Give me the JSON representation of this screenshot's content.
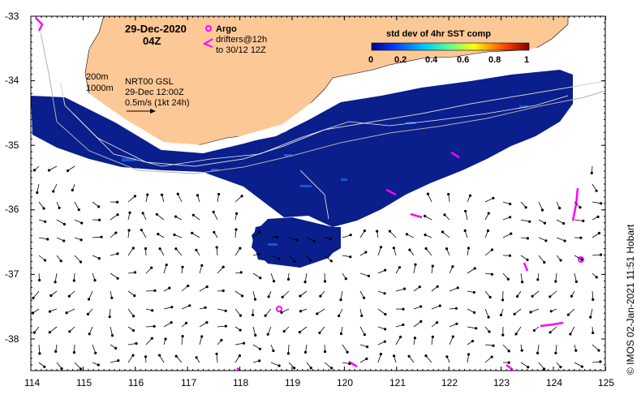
{
  "header": {
    "date": "29-Dec-2020",
    "time": "04Z"
  },
  "legend": {
    "argo_label": "Argo",
    "drifters_line1": "drifters@12h",
    "drifters_line2": "to 30/12 12Z"
  },
  "colorbar": {
    "title": "std dev of 4hr SST comp",
    "ticks": [
      "0",
      "0.2",
      "0.4",
      "0.6",
      "0.8",
      "1"
    ]
  },
  "info": {
    "contour1": "200m",
    "contour2": "1000m",
    "model": "NRT00 GSL",
    "model_time": "29-Dec 12:00Z",
    "scale": "0.5m/s (1kt 24h)"
  },
  "axes": {
    "lat_labels": [
      "-33",
      "-34",
      "-35",
      "-36",
      "-37",
      "-38"
    ],
    "lon_labels": [
      "114",
      "115",
      "116",
      "117",
      "118",
      "119",
      "120",
      "121",
      "122",
      "123",
      "124",
      "125"
    ]
  },
  "credit": "© IMOS 02-Jan-2021 11:51 Hobart",
  "colors": {
    "land": "#fbc896",
    "deep_blue": "#0a1e8c",
    "drifter": "#ff00ff"
  }
}
